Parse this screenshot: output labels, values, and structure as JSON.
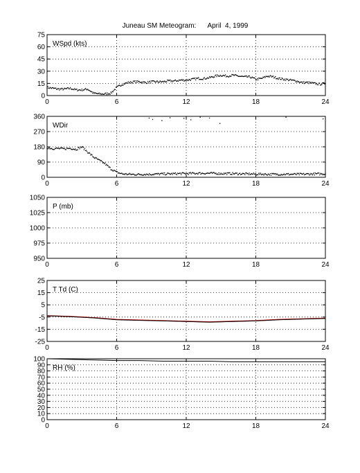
{
  "title": "Juneau SM Meteogram:      April  4, 1999",
  "colors": {
    "data": "#000000",
    "temperature": "#cc0000",
    "dewpoint": "#000000",
    "grid": "#000000",
    "background": "#ffffff"
  },
  "chart_data": [
    {
      "type": "scatter",
      "label": "WSpd (kts)",
      "xlim": [
        0,
        24
      ],
      "xticks": [
        "0",
        "6",
        "12",
        "18",
        "24"
      ],
      "ylim": [
        0,
        75
      ],
      "yticks": [
        "0",
        "15",
        "30",
        "45",
        "60",
        "75"
      ],
      "grid": true,
      "series": [
        {
          "x": [
            0,
            0.5,
            1,
            1.5,
            2,
            2.5,
            3,
            3.5,
            4,
            4.5,
            5,
            5.5,
            6,
            6.5,
            7,
            7.5,
            8,
            8.5,
            9,
            9.5,
            10,
            10.5,
            11,
            11.5,
            12,
            12.5,
            13,
            13.5,
            14,
            14.5,
            15,
            15.5,
            16,
            16.5,
            17,
            17.5,
            18,
            18.5,
            19,
            19.5,
            20,
            20.5,
            21,
            21.5,
            22,
            22.5,
            23,
            23.5,
            24
          ],
          "y": [
            10,
            9,
            8,
            8,
            9,
            7,
            7,
            8,
            3,
            2,
            2,
            3,
            10,
            14,
            16,
            17,
            17,
            16,
            17,
            17,
            17,
            18,
            18,
            19,
            19,
            20,
            21,
            21,
            22,
            24,
            25,
            24,
            25,
            24,
            23,
            23,
            20,
            21,
            24,
            23,
            21,
            20,
            19,
            18,
            16,
            16,
            15,
            14,
            15
          ]
        }
      ]
    },
    {
      "type": "scatter",
      "label": "WDir",
      "xlim": [
        0,
        24
      ],
      "xticks": [
        "0",
        "6",
        "12",
        "18",
        "24"
      ],
      "ylim": [
        0,
        360
      ],
      "yticks": [
        "0",
        "90",
        "180",
        "270",
        "360"
      ],
      "grid": true,
      "series": [
        {
          "x": [
            0,
            0.5,
            1,
            1.5,
            2,
            2.5,
            3,
            3.5,
            4,
            4.5,
            5,
            5.5,
            6,
            6.5,
            7,
            7.5,
            8,
            8.5,
            9,
            9.5,
            10,
            10.5,
            11,
            11.5,
            12,
            12.5,
            13,
            13.5,
            14,
            14.5,
            15,
            15.5,
            16,
            16.5,
            17,
            17.5,
            18,
            18.5,
            19,
            19.5,
            20,
            20.5,
            21,
            21.5,
            22,
            22.5,
            23,
            23.5,
            24
          ],
          "y": [
            175,
            170,
            170,
            168,
            172,
            165,
            180,
            150,
            120,
            100,
            80,
            50,
            30,
            20,
            18,
            17,
            17,
            18,
            18,
            19,
            20,
            20,
            21,
            22,
            22,
            23,
            24,
            24,
            24,
            23,
            22,
            22,
            22,
            21,
            20,
            20,
            19,
            19,
            18,
            18,
            18,
            18,
            18,
            18,
            18,
            19,
            20,
            20,
            20
          ]
        },
        {
          "x": [
            8.8,
            9.1,
            9.9,
            10.6,
            11.8,
            12.4,
            13.2,
            14.0,
            14.9,
            20.6,
            23.8
          ],
          "y": [
            350,
            342,
            335,
            352,
            348,
            340,
            355,
            350,
            318,
            355,
            345
          ]
        }
      ]
    },
    {
      "type": "line",
      "label": "P (mb)",
      "xlim": [
        0,
        24
      ],
      "xticks": [
        "0",
        "6",
        "12",
        "18",
        "24"
      ],
      "ylim": [
        950,
        1050
      ],
      "yticks": [
        "950",
        "975",
        "1000",
        "1025",
        "1050"
      ],
      "grid": true,
      "series": []
    },
    {
      "type": "line",
      "label": "T Td (C)",
      "xlim": [
        0,
        24
      ],
      "xticks": [
        "0",
        "6",
        "12",
        "18",
        "24"
      ],
      "ylim": [
        -25,
        25
      ],
      "yticks": [
        "-25",
        "-15",
        "-5",
        "5",
        "15",
        "25"
      ],
      "grid": true,
      "series": [
        {
          "x": [
            0,
            2,
            4,
            6,
            8,
            10,
            12,
            14,
            16,
            18,
            20,
            22,
            24
          ],
          "y": [
            -4,
            -4.5,
            -5.5,
            -7,
            -7.5,
            -8,
            -8.5,
            -9,
            -8.5,
            -8,
            -7,
            -6.5,
            -6
          ]
        },
        {
          "x": [
            0,
            2,
            4,
            6,
            8,
            10,
            12,
            14,
            16,
            18,
            20,
            22,
            24
          ],
          "y": [
            -4,
            -4.7,
            -5.7,
            -7.2,
            -7.7,
            -8.2,
            -8.7,
            -9.2,
            -8.7,
            -8.2,
            -7.2,
            -6.7,
            -6.2
          ]
        }
      ]
    },
    {
      "type": "line",
      "label": "RH (%)",
      "xlim": [
        0,
        24
      ],
      "xticks": [
        "0",
        "6",
        "12",
        "18",
        "24"
      ],
      "ylim": [
        0,
        100
      ],
      "yticks": [
        "0",
        "10",
        "20",
        "30",
        "40",
        "50",
        "60",
        "70",
        "80",
        "90",
        "100"
      ],
      "grid": true,
      "series": [
        {
          "x": [
            0,
            2,
            4,
            6,
            8,
            10,
            12,
            14,
            16,
            18,
            20,
            22,
            24
          ],
          "y": [
            100,
            99,
            98,
            97,
            97,
            96,
            96,
            96,
            95,
            95,
            95,
            95,
            95
          ]
        }
      ]
    }
  ]
}
